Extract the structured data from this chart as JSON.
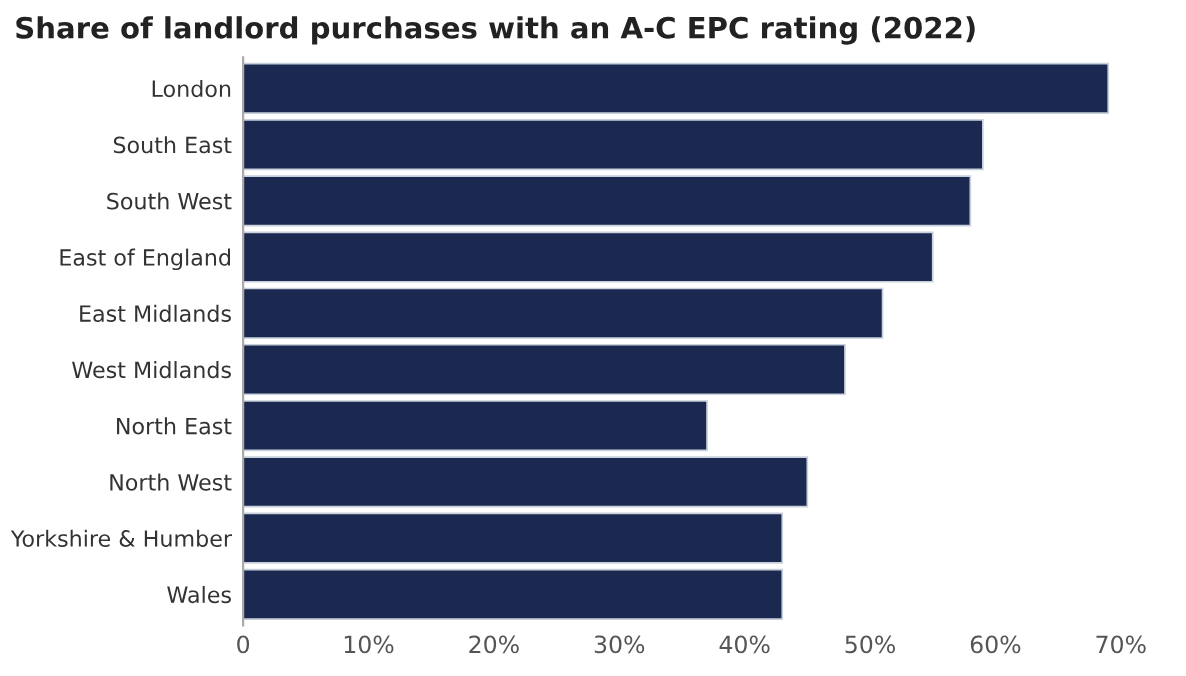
{
  "chart_data": {
    "type": "bar",
    "orientation": "horizontal",
    "title": "Share of landlord purchases with an A-C EPC rating (2022)",
    "categories": [
      "London",
      "South East",
      "South West",
      "East of England",
      "East Midlands",
      "West Midlands",
      "North East",
      "North West",
      "Yorkshire & Humber",
      "Wales"
    ],
    "values": [
      69,
      59,
      58,
      55,
      51,
      48,
      37,
      45,
      43,
      43
    ],
    "color": "#1b2850",
    "xlim": [
      0,
      70
    ],
    "xticks": [
      0,
      {
        "value": 10,
        "label": "10%"
      },
      {
        "value": 20,
        "label": "20%"
      },
      {
        "value": 30,
        "label": "30%"
      },
      {
        "value": 40,
        "label": "40%"
      },
      {
        "value": 50,
        "label": "50%"
      },
      {
        "value": 60,
        "label": "60%"
      },
      {
        "value": 70,
        "label": "70%"
      }
    ],
    "grid": false
  }
}
